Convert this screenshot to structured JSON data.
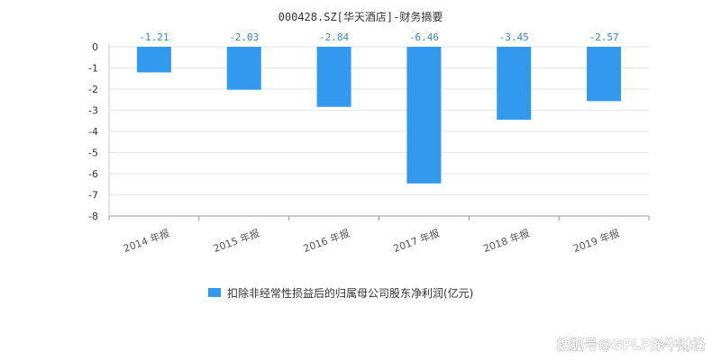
{
  "chart_data": {
    "type": "bar",
    "title": "000428.SZ[华天酒店]-财务摘要",
    "categories": [
      "2014 年报",
      "2015 年报",
      "2016 年报",
      "2017 年报",
      "2018 年报",
      "2019 年报"
    ],
    "series": [
      {
        "name": "扣除非经常性损益后的归属母公司股东净利润(亿元)",
        "values": [
          -1.21,
          -2.03,
          -2.84,
          -6.46,
          -3.45,
          -2.57
        ]
      }
    ],
    "data_labels": [
      "-1.21",
      "-2.03",
      "-2.84",
      "-6.46",
      "-3.45",
      "-2.57"
    ],
    "ylim": [
      -8,
      0
    ],
    "yticks": [
      "0",
      "-1",
      "-2",
      "-3",
      "-4",
      "-5",
      "-6",
      "-7",
      "-8"
    ],
    "grid": true,
    "legend_position": "bottom-center",
    "bar_color": "#3399ee",
    "label_color": "#3a86c8"
  },
  "watermark": "搜狐号@GPLP犀牛财经"
}
